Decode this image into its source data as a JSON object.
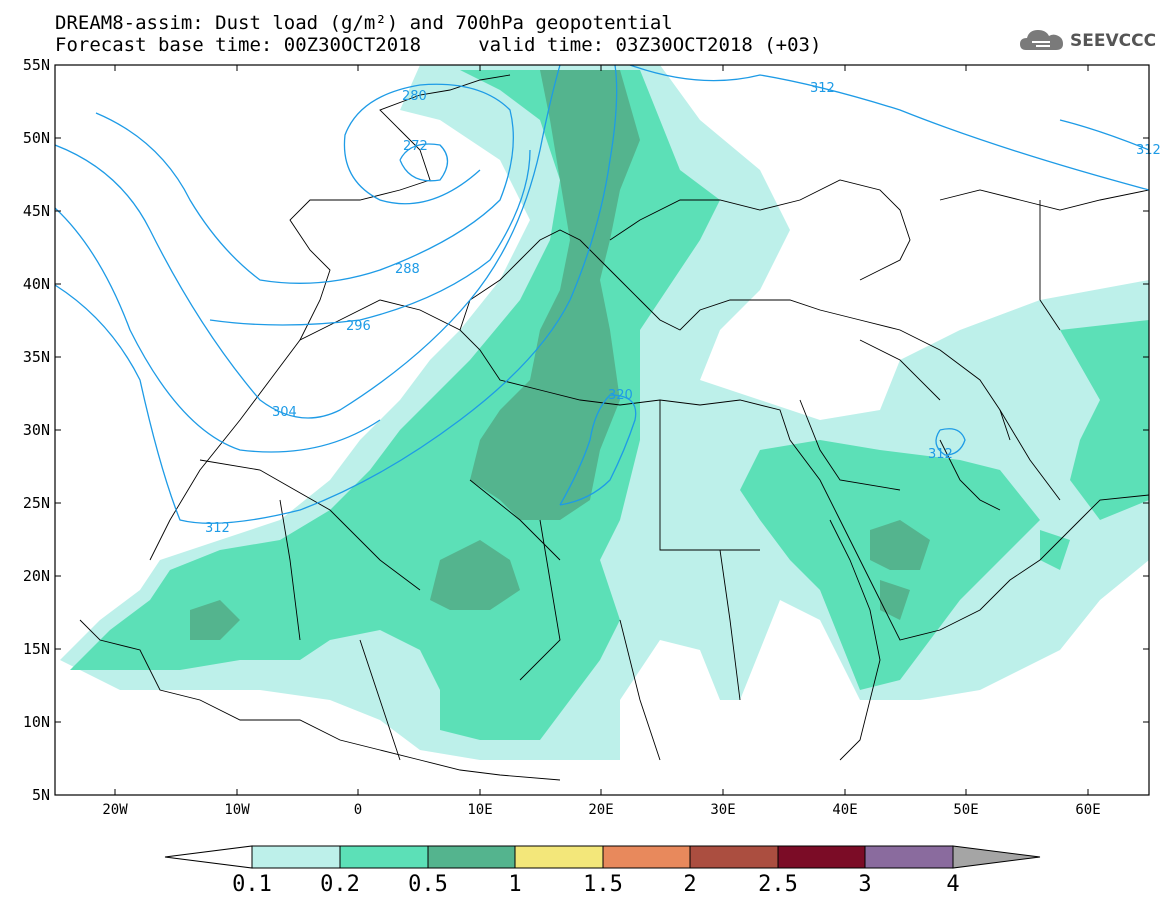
{
  "title_line1": "DREAM8-assim: Dust load (g/m²) and 700hPa geopotential",
  "title_line2": "Forecast base time: 00Z30OCT2018     valid time: 03Z30OCT2018 (+03)",
  "logo_text": "SEEVCCC",
  "map": {
    "lat_labels": [
      "55N",
      "50N",
      "45N",
      "40N",
      "35N",
      "30N",
      "25N",
      "20N",
      "15N",
      "10N",
      "5N"
    ],
    "lon_labels": [
      "20W",
      "10W",
      "0",
      "10E",
      "20E",
      "30E",
      "40E",
      "50E",
      "60E"
    ],
    "contour_labels": [
      "280",
      "272",
      "288",
      "296",
      "304",
      "312",
      "312",
      "320",
      "312",
      "312"
    ],
    "contour_color": "#1e9be6",
    "border_color": "#000000"
  },
  "colorbar": {
    "labels": [
      "0.1",
      "0.2",
      "0.5",
      "1",
      "1.5",
      "2",
      "2.5",
      "3",
      "4"
    ],
    "colors": [
      "#ffffff",
      "#bdf0ea",
      "#5ce0b7",
      "#54b48e",
      "#f3e77a",
      "#e8895c",
      "#ab4e40",
      "#7b0c26",
      "#8a6b9e",
      "#a5a5a5"
    ]
  }
}
